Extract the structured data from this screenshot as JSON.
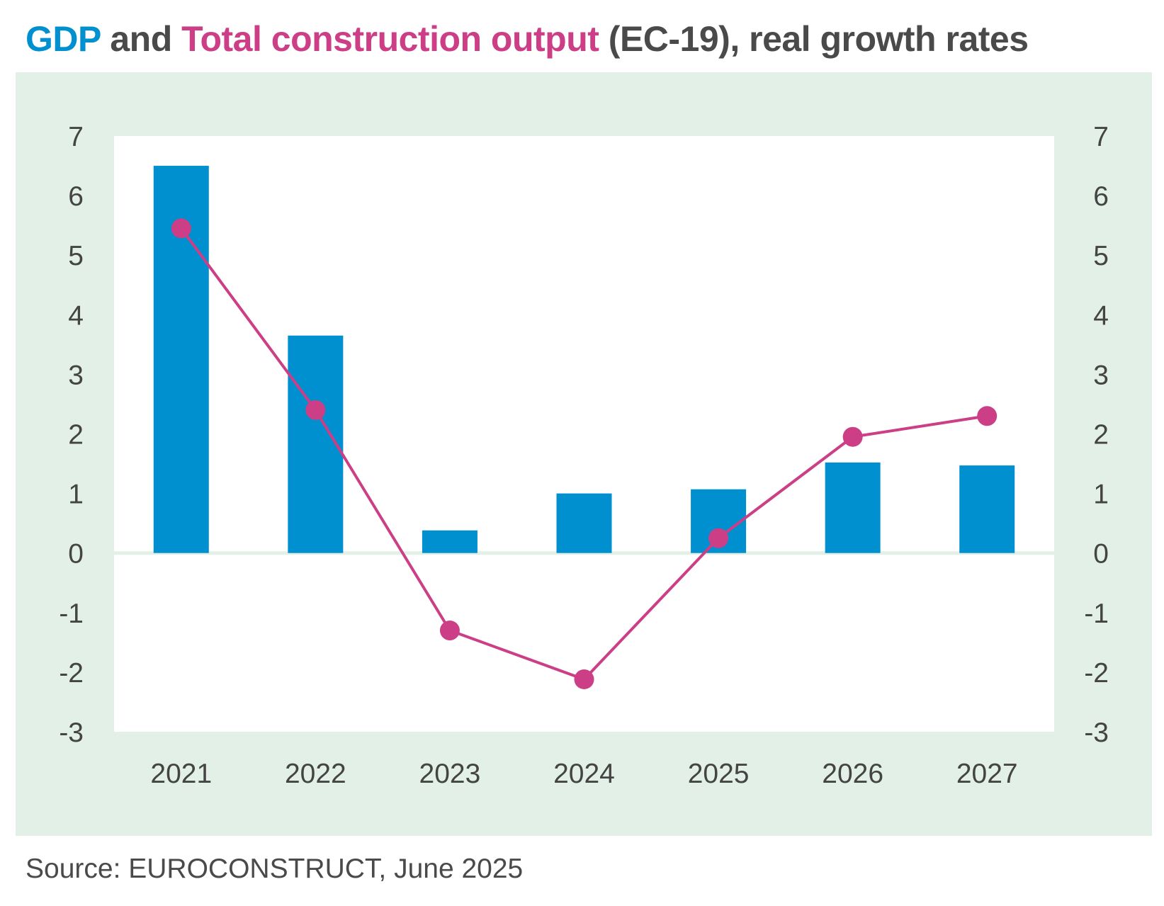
{
  "title": {
    "part1": "GDP",
    "part2": " and ",
    "part3": "Total construction output",
    "part4": " (EC-19), real growth rates"
  },
  "source": "Source: EUROCONSTRUCT, June 2025",
  "colors": {
    "gdp": "#0090d0",
    "construction": "#cc3f86",
    "panel_background": "#e2f0e7",
    "plot_background": "#ffffff",
    "text": "#4a4a4a"
  },
  "chart_data": {
    "type": "bar",
    "categories": [
      "2021",
      "2022",
      "2023",
      "2024",
      "2025",
      "2026",
      "2027"
    ],
    "series": [
      {
        "name": "GDP",
        "type": "bar",
        "axis": "left",
        "values": [
          6.5,
          3.65,
          0.38,
          1.0,
          1.07,
          1.52,
          1.47
        ]
      },
      {
        "name": "Total construction output",
        "type": "line",
        "axis": "right",
        "values": [
          5.45,
          2.4,
          -1.3,
          -2.12,
          0.25,
          1.95,
          2.3
        ]
      }
    ],
    "ylim": [
      -3,
      7
    ],
    "y2lim": [
      -3,
      7
    ],
    "yticks": [
      "-3",
      "-2",
      "-1",
      "0",
      "1",
      "2",
      "3",
      "4",
      "5",
      "6",
      "7"
    ],
    "grid": false,
    "legend": "none (series named in title colors)"
  }
}
